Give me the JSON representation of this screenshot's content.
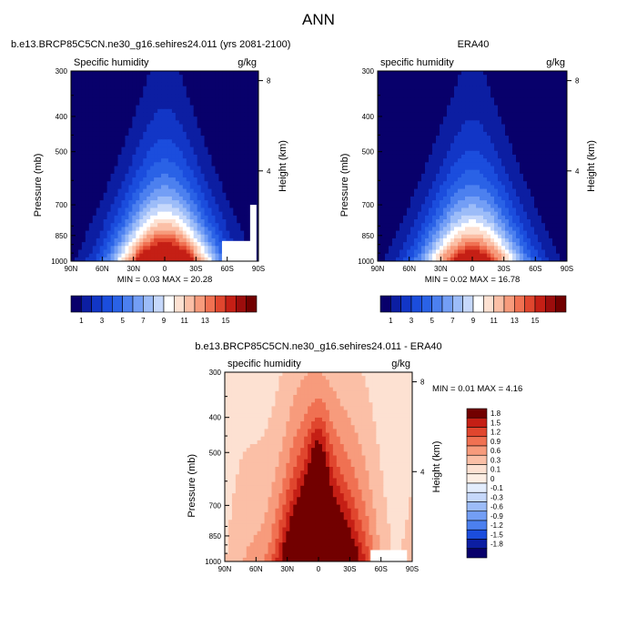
{
  "figure": {
    "title": "ANN"
  },
  "chart_data": [
    {
      "type": "heatmap",
      "plot_type": "filled contour",
      "title": "b.e13.BRCP85C5CN.ne30_g16.sehires24.011 (yrs 2081-2100)",
      "left_label": "Specific humidity",
      "right_label": "g/kg",
      "xlabel": "",
      "ylabel": "Pressure (mb)",
      "y2label": "Height (km)",
      "x_ticks": [
        "90N",
        "60N",
        "30N",
        "0",
        "30S",
        "60S",
        "90S"
      ],
      "y_ticks": [
        "300",
        "400",
        "500",
        "700",
        "850",
        "1000"
      ],
      "y2_ticks": [
        "8",
        "4"
      ],
      "ylim": [
        1000,
        300
      ],
      "y_scale": "log",
      "x_range": [
        90,
        -90
      ],
      "stats": {
        "min": "0.03",
        "max": "20.28",
        "text": "MIN =  0.03  MAX =  20.28"
      },
      "contour_levels": [
        1,
        2,
        3,
        4,
        5,
        6,
        7,
        8,
        9,
        10,
        11,
        12,
        13,
        14,
        15
      ],
      "colorbar_labels": [
        "1",
        "3",
        "5",
        "7",
        "9",
        "11",
        "13",
        "15"
      ],
      "colorbar_orientation": "horizontal",
      "colors": [
        "#08006b",
        "#0c1ea2",
        "#1236c6",
        "#1b4ddd",
        "#2a62e6",
        "#4c80ef",
        "#739ef5",
        "#9cbcf8",
        "#c6d8fb",
        "#ffffff",
        "#fde1d2",
        "#fbbfa6",
        "#f79b7c",
        "#f07152",
        "#e0462e",
        "#c51f15",
        "#9c0d0c",
        "#720000"
      ],
      "missing_region": "below topography near 55S–90S, 850–1000 mb"
    },
    {
      "type": "heatmap",
      "plot_type": "filled contour",
      "title": "ERA40",
      "left_label": "specific humidity",
      "right_label": "g/kg",
      "xlabel": "",
      "ylabel": "Pressure (mb)",
      "y2label": "Height (km)",
      "x_ticks": [
        "90N",
        "60N",
        "30N",
        "0",
        "30S",
        "60S",
        "90S"
      ],
      "y_ticks": [
        "300",
        "400",
        "500",
        "700",
        "850",
        "1000"
      ],
      "y2_ticks": [
        "8",
        "4"
      ],
      "ylim": [
        1000,
        300
      ],
      "y_scale": "log",
      "x_range": [
        90,
        -90
      ],
      "stats": {
        "min": "0.02",
        "max": "16.78",
        "text": "MIN =  0.02  MAX =  16.78"
      },
      "contour_levels": [
        1,
        2,
        3,
        4,
        5,
        6,
        7,
        8,
        9,
        10,
        11,
        12,
        13,
        14,
        15
      ],
      "colorbar_labels": [
        "1",
        "3",
        "5",
        "7",
        "9",
        "11",
        "13",
        "15"
      ],
      "colorbar_orientation": "horizontal",
      "colors": [
        "#08006b",
        "#0c1ea2",
        "#1236c6",
        "#1b4ddd",
        "#2a62e6",
        "#4c80ef",
        "#739ef5",
        "#9cbcf8",
        "#c6d8fb",
        "#ffffff",
        "#fde1d2",
        "#fbbfa6",
        "#f79b7c",
        "#f07152",
        "#e0462e",
        "#c51f15",
        "#9c0d0c",
        "#720000"
      ]
    },
    {
      "type": "heatmap",
      "plot_type": "filled contour (difference)",
      "title": "b.e13.BRCP85C5CN.ne30_g16.sehires24.011 - ERA40",
      "left_label": "specific humidity",
      "right_label": "g/kg",
      "xlabel": "",
      "ylabel": "Pressure (mb)",
      "y2label": "Height (km)",
      "x_ticks": [
        "90N",
        "60N",
        "30N",
        "0",
        "30S",
        "60S",
        "90S"
      ],
      "y_ticks": [
        "300",
        "400",
        "500",
        "700",
        "850",
        "1000"
      ],
      "y2_ticks": [
        "8",
        "4"
      ],
      "ylim": [
        1000,
        300
      ],
      "y_scale": "log",
      "x_range": [
        90,
        -90
      ],
      "stats": {
        "min": "0.01",
        "max": "4.16",
        "text": "MIN =  0.01  MAX =  4.16"
      },
      "contour_levels": [
        -1.8,
        -1.5,
        -1.2,
        -0.9,
        -0.6,
        -0.3,
        -0.1,
        0,
        0.1,
        0.3,
        0.6,
        0.9,
        1.2,
        1.5,
        1.8
      ],
      "colorbar_labels": [
        "1.8",
        "1.5",
        "1.2",
        "0.9",
        "0.6",
        "0.3",
        "0.1",
        "0",
        "-0.1",
        "-0.3",
        "-0.6",
        "-0.9",
        "-1.2",
        "-1.5",
        "-1.8"
      ],
      "colorbar_orientation": "vertical",
      "colors": [
        "#08006b",
        "#0c1ea2",
        "#1b4ddd",
        "#4c80ef",
        "#739ef5",
        "#9cbcf8",
        "#c6d8fb",
        "#e3edfd",
        "#fdeee4",
        "#fde1d2",
        "#fbbfa6",
        "#f79b7c",
        "#f07152",
        "#e0462e",
        "#c51f15",
        "#720000"
      ],
      "missing_region": "below topography near 55S–90S, 930–1000 mb"
    }
  ]
}
